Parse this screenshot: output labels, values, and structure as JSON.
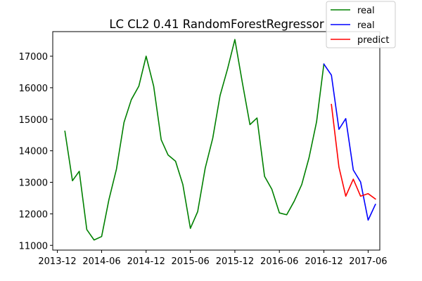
{
  "chart_data": {
    "type": "line",
    "title": "LC CL2 0.41 RandomForestRegressor",
    "xlabel": "",
    "ylabel": "",
    "x_ticks": [
      "2013-12",
      "2014-06",
      "2014-12",
      "2015-06",
      "2015-12",
      "2016-06",
      "2016-12",
      "2017-06"
    ],
    "y_ticks": [
      11000,
      12000,
      13000,
      14000,
      15000,
      16000,
      17000
    ],
    "xlim": [
      "2013-11-12",
      "2017-07-19"
    ],
    "ylim": [
      10850,
      17780
    ],
    "grid": false,
    "legend_position": "top-right",
    "series": [
      {
        "name": "real",
        "color": "#008000",
        "points": [
          [
            "2014-01-01",
            14620
          ],
          [
            "2014-02-01",
            13050
          ],
          [
            "2014-03-01",
            13350
          ],
          [
            "2014-04-01",
            11500
          ],
          [
            "2014-05-01",
            11170
          ],
          [
            "2014-06-01",
            11280
          ],
          [
            "2014-07-01",
            12450
          ],
          [
            "2014-08-01",
            13420
          ],
          [
            "2014-09-01",
            14900
          ],
          [
            "2014-10-01",
            15620
          ],
          [
            "2014-11-01",
            16050
          ],
          [
            "2014-12-01",
            17000
          ],
          [
            "2015-01-01",
            16050
          ],
          [
            "2015-02-01",
            14350
          ],
          [
            "2015-03-01",
            13870
          ],
          [
            "2015-04-01",
            13670
          ],
          [
            "2015-05-01",
            12930
          ],
          [
            "2015-06-01",
            11540
          ],
          [
            "2015-07-01",
            12070
          ],
          [
            "2015-08-01",
            13450
          ],
          [
            "2015-09-01",
            14400
          ],
          [
            "2015-10-01",
            15750
          ],
          [
            "2015-11-01",
            16600
          ],
          [
            "2015-12-01",
            17530
          ],
          [
            "2016-01-01",
            16150
          ],
          [
            "2016-02-01",
            14830
          ],
          [
            "2016-03-01",
            15040
          ],
          [
            "2016-04-01",
            13190
          ],
          [
            "2016-05-01",
            12780
          ],
          [
            "2016-06-01",
            12030
          ],
          [
            "2016-07-01",
            11970
          ],
          [
            "2016-08-01",
            12400
          ],
          [
            "2016-09-01",
            12930
          ],
          [
            "2016-10-01",
            13780
          ],
          [
            "2016-11-01",
            14920
          ],
          [
            "2016-12-01",
            16750
          ]
        ]
      },
      {
        "name": "real",
        "color": "#0000ff",
        "points": [
          [
            "2016-12-01",
            16750
          ],
          [
            "2017-01-01",
            16400
          ],
          [
            "2017-02-01",
            14680
          ],
          [
            "2017-03-01",
            15020
          ],
          [
            "2017-04-01",
            13390
          ],
          [
            "2017-05-01",
            13010
          ],
          [
            "2017-06-01",
            11800
          ],
          [
            "2017-07-01",
            12300
          ]
        ]
      },
      {
        "name": "predict",
        "color": "#ff0000",
        "points": [
          [
            "2017-01-01",
            15470
          ],
          [
            "2017-02-01",
            13480
          ],
          [
            "2017-03-01",
            12560
          ],
          [
            "2017-04-01",
            13100
          ],
          [
            "2017-05-01",
            12560
          ],
          [
            "2017-06-01",
            12640
          ],
          [
            "2017-07-01",
            12470
          ]
        ]
      }
    ]
  }
}
